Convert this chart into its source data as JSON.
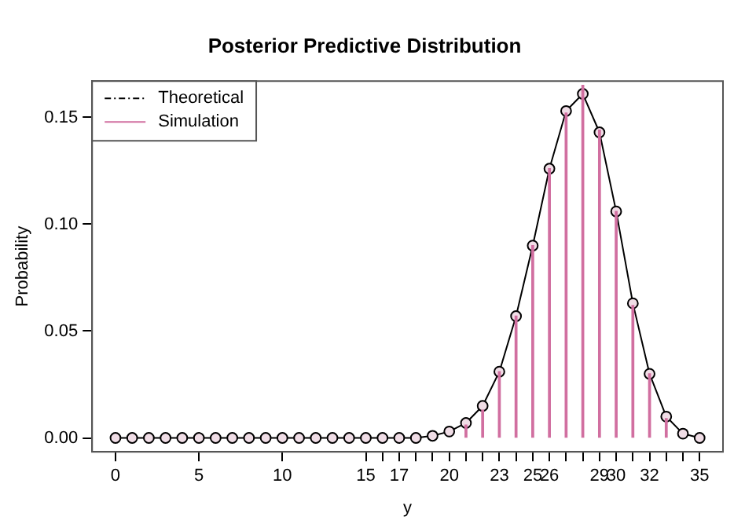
{
  "chart_data": {
    "type": "line",
    "title": "Posterior Predictive Distribution",
    "xlabel": "y",
    "ylabel": "Probability",
    "xlim": [
      -1.4,
      36.4
    ],
    "ylim": [
      -0.0065,
      0.167
    ],
    "xticks": [
      0,
      5,
      10,
      15,
      {
        "value": 16,
        "label": null
      },
      17,
      {
        "value": 18,
        "label": null
      },
      {
        "value": 19,
        "label": null
      },
      20,
      {
        "value": 21,
        "label": null
      },
      {
        "value": 22,
        "label": null
      },
      23,
      {
        "value": 24,
        "label": null
      },
      25,
      26,
      {
        "value": 27,
        "label": null
      },
      {
        "value": 28,
        "label": null
      },
      29,
      30,
      {
        "value": 31,
        "label": null
      },
      32,
      {
        "value": 33,
        "label": null
      },
      {
        "value": 34,
        "label": null
      },
      35
    ],
    "yticks": [
      {
        "value": 0,
        "label": "0.00"
      },
      {
        "value": 0.05,
        "label": "0.05"
      },
      {
        "value": 0.1,
        "label": "0.10"
      },
      {
        "value": 0.15,
        "label": "0.15"
      }
    ],
    "legend": "top left",
    "grid": false,
    "series": [
      {
        "name": "Theoretical",
        "color": "#000000",
        "marker": "circle",
        "line_style": "solid",
        "x": [
          0,
          1,
          2,
          3,
          4,
          5,
          6,
          7,
          8,
          9,
          10,
          11,
          12,
          13,
          14,
          15,
          16,
          17,
          18,
          19,
          20,
          21,
          22,
          23,
          24,
          25,
          26,
          27,
          28,
          29,
          30,
          31,
          32,
          33,
          34,
          35
        ],
        "values": [
          0,
          0,
          0,
          0,
          0,
          0,
          0,
          0,
          0,
          0,
          0,
          0,
          0,
          0,
          0,
          0,
          0,
          0,
          0,
          0.001,
          0.003,
          0.007,
          0.015,
          0.031,
          0.057,
          0.09,
          0.126,
          0.153,
          0.161,
          0.143,
          0.106,
          0.063,
          0.03,
          0.01,
          0.002,
          0
        ]
      },
      {
        "name": "Simulation",
        "type": "bar",
        "color": "#d16fa0",
        "x": [
          21,
          22,
          23,
          24,
          25,
          26,
          27,
          28,
          29,
          30,
          31,
          32,
          33
        ],
        "values": [
          0.006,
          0.013,
          0.031,
          0.057,
          0.09,
          0.126,
          0.152,
          0.165,
          0.144,
          0.106,
          0.062,
          0.03,
          0.009
        ]
      }
    ]
  }
}
